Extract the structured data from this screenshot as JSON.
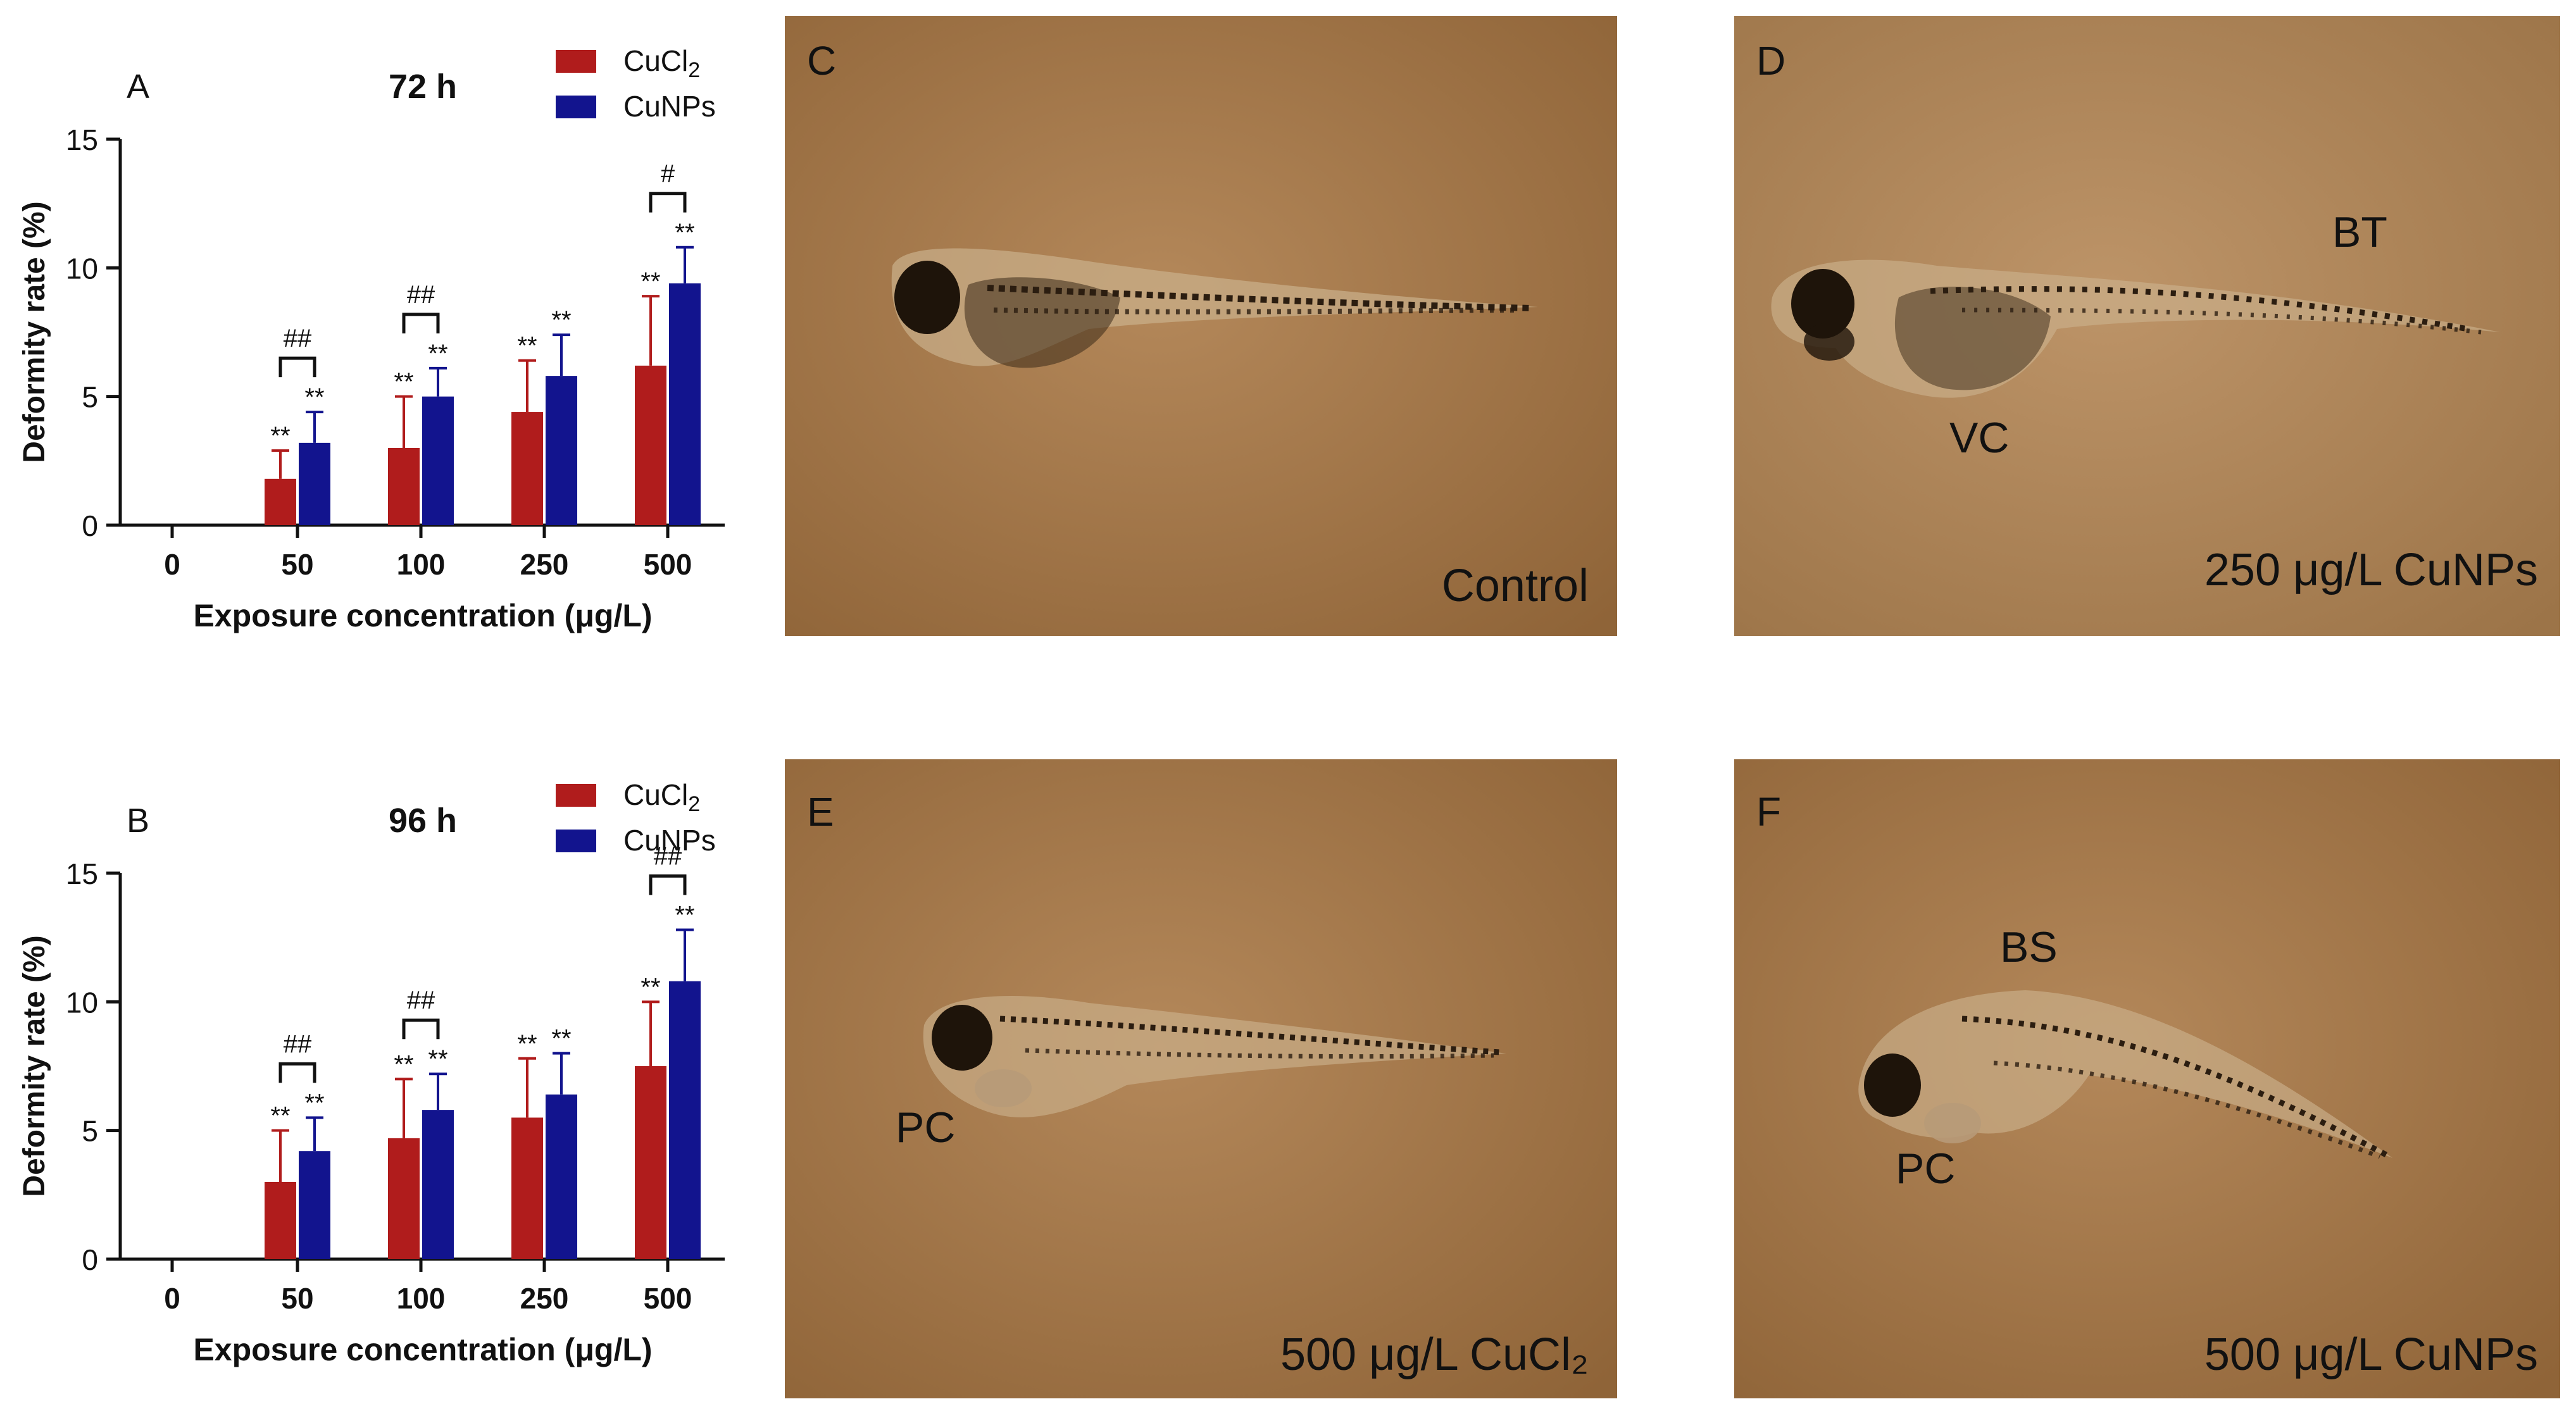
{
  "colors": {
    "cucl2": "#b01c1c",
    "cunps": "#12148e",
    "photo_bg": "#9c7044",
    "photo_bg_light": "#b08458"
  },
  "chart_data": [
    {
      "type": "bar",
      "panel_letter": "A",
      "title": "72 h",
      "xlabel": "Exposure concentration (μg/L)",
      "ylabel": "Deformity rate (%)",
      "ylim": [
        0,
        15
      ],
      "yticks": [
        "0",
        "5",
        "10",
        "15"
      ],
      "categories": [
        "0",
        "50",
        "100",
        "250",
        "500"
      ],
      "series": [
        {
          "name": "CuCl2",
          "legend_main": "CuCl",
          "legend_sub": "2",
          "values": [
            0,
            1.8,
            3.0,
            4.4,
            6.2
          ],
          "errors": [
            0,
            1.1,
            2.0,
            2.0,
            2.7
          ],
          "sig": [
            "",
            "**",
            "**",
            "**",
            "**"
          ]
        },
        {
          "name": "CuNPs",
          "legend_main": "CuNPs",
          "legend_sub": "",
          "values": [
            0,
            3.2,
            5.0,
            5.8,
            9.4
          ],
          "errors": [
            0,
            1.2,
            1.1,
            1.6,
            1.4
          ],
          "sig": [
            "",
            "**",
            "**",
            "**",
            "**"
          ]
        }
      ],
      "comparisons": [
        {
          "category": "50",
          "label": "##"
        },
        {
          "category": "100",
          "label": "##"
        },
        {
          "category": "500",
          "label": "#"
        }
      ],
      "legend_position": "top-right",
      "grid": false
    },
    {
      "type": "bar",
      "panel_letter": "B",
      "title": "96 h",
      "xlabel": "Exposure concentration (μg/L)",
      "ylabel": "Deformity rate (%)",
      "ylim": [
        0,
        15
      ],
      "yticks": [
        "0",
        "5",
        "10",
        "15"
      ],
      "categories": [
        "0",
        "50",
        "100",
        "250",
        "500"
      ],
      "series": [
        {
          "name": "CuCl2",
          "legend_main": "CuCl",
          "legend_sub": "2",
          "values": [
            0,
            3.0,
            4.7,
            5.5,
            7.5
          ],
          "errors": [
            0,
            2.0,
            2.3,
            2.3,
            2.5
          ],
          "sig": [
            "",
            "**",
            "**",
            "**",
            "**"
          ]
        },
        {
          "name": "CuNPs",
          "legend_main": "CuNPs",
          "legend_sub": "",
          "values": [
            0,
            4.2,
            5.8,
            6.4,
            10.8
          ],
          "errors": [
            0,
            1.3,
            1.4,
            1.6,
            2.0
          ],
          "sig": [
            "",
            "**",
            "**",
            "**",
            "**"
          ]
        }
      ],
      "comparisons": [
        {
          "category": "50",
          "label": "##"
        },
        {
          "category": "100",
          "label": "##"
        },
        {
          "category": "500",
          "label": "##"
        }
      ],
      "legend_position": "top-right",
      "grid": false
    }
  ],
  "photos": [
    {
      "letter": "C",
      "caption": "Control",
      "annotations": []
    },
    {
      "letter": "D",
      "caption": "250 μg/L CuNPs",
      "annotations": [
        "BT",
        "VC"
      ]
    },
    {
      "letter": "E",
      "caption": "500 μg/L CuCl₂",
      "annotations": [
        "PC"
      ]
    },
    {
      "letter": "F",
      "caption": "500 μg/L CuNPs",
      "annotations": [
        "BS",
        "PC"
      ]
    }
  ]
}
